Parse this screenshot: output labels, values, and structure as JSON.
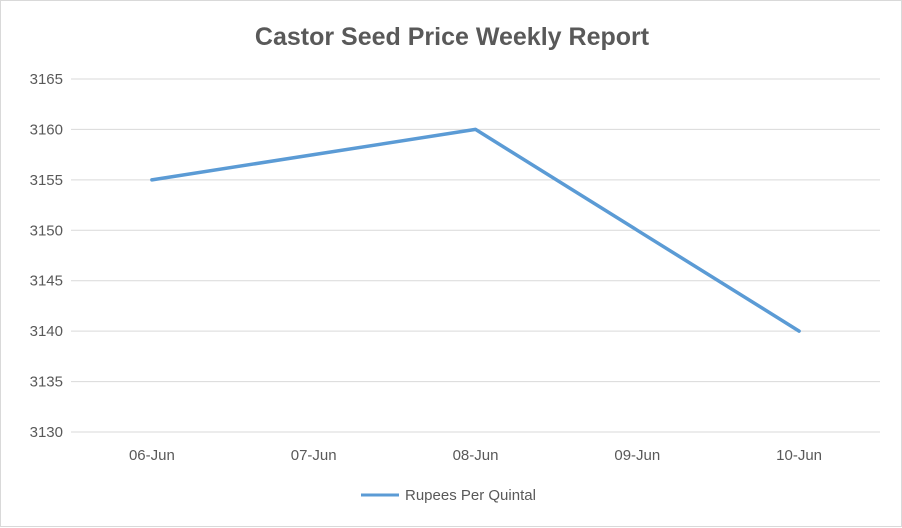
{
  "chart_data": {
    "type": "line",
    "title": "Castor Seed Price Weekly Report",
    "xlabel": "",
    "ylabel": "",
    "categories": [
      "06-Jun",
      "07-Jun",
      "08-Jun",
      "09-Jun",
      "10-Jun"
    ],
    "series": [
      {
        "name": "Rupees Per Quintal",
        "values": [
          3155,
          3157.5,
          3160,
          3150,
          3140
        ],
        "color": "#5b9bd5"
      }
    ],
    "ylim": [
      3130,
      3165
    ],
    "yticks": [
      "3130",
      "3135",
      "3140",
      "3145",
      "3150",
      "3155",
      "3160",
      "3165"
    ],
    "grid": true,
    "legend_position": "bottom",
    "gridline_color": "#d9d9d9",
    "text_color": "#595959"
  }
}
